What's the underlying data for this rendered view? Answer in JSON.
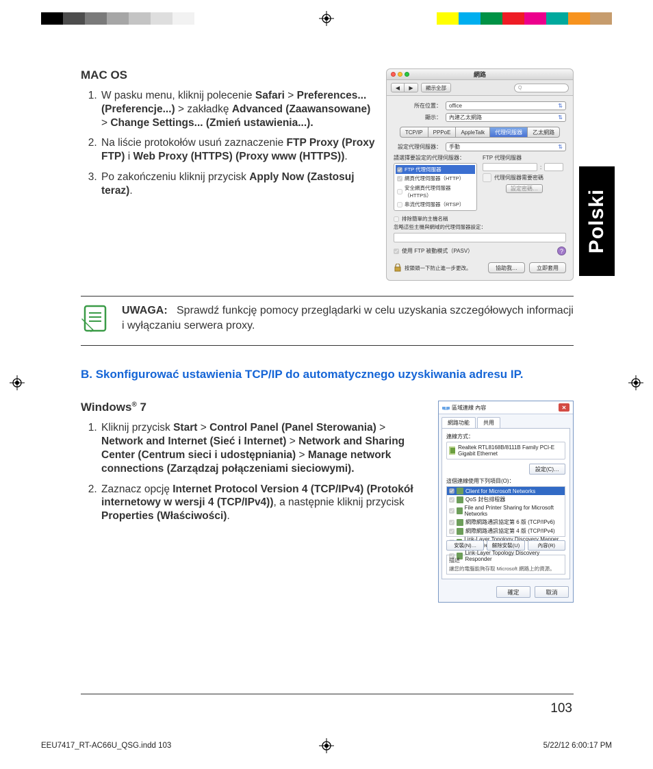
{
  "color_bar": {
    "left": [
      "#000000",
      "#4d4d4d",
      "#7a7a7a",
      "#a6a6a6",
      "#c4c4c4",
      "#dedede",
      "#f2f2f2"
    ],
    "right": [
      "#ffff00",
      "#00aeef",
      "#009245",
      "#ee1c25",
      "#ec008c",
      "#00a99d",
      "#f7931e",
      "#c69c6d"
    ]
  },
  "side_tab": "Polski",
  "macos": {
    "heading": "MAC OS",
    "steps": [
      "W pasku menu, kliknij polecenie <b>Safari</b> > <b>Preferences... (Preferencje...)</b> > zakładkę <b>Advanced (Zaawansowane)</b> > <b>Change  Settings... (Zmień ustawienia...).</b>",
      "Na liście protokołów usuń zaznaczenie <b>FTP Proxy (Proxy FTP)</b> i <b>Web Proxy (HTTPS) (Proxy www (HTTPS))</b>.",
      "Po zakończeniu kliknij przycisk  <b>Apply Now (Zastosuj teraz)</b>."
    ],
    "window": {
      "title": "網路",
      "show_all": "顯示全部",
      "search_hint": "Q",
      "location_lbl": "所在位置：",
      "location_val": "office",
      "show_lbl": "顯示：",
      "show_val": "內建乙太網路",
      "tabs": [
        "TCP/IP",
        "PPPoE",
        "AppleTalk",
        "代理伺服器",
        "乙太網路"
      ],
      "active_tab": 3,
      "cfg_lbl": "設定代理伺服器：",
      "cfg_val": "手動",
      "left_hdr": "請選擇要設定的代理伺服器：",
      "right_hdr": "FTP 代理伺服器",
      "proxy_items": [
        {
          "label": "FTP 代理伺服器",
          "checked": true,
          "sel": true
        },
        {
          "label": "網頁代理伺服器（HTTP）",
          "checked": true,
          "sel": false
        },
        {
          "label": "安全網頁代理伺服器（HTTPS）",
          "checked": false,
          "sel": false
        },
        {
          "label": "串流代理伺服器（RTSP）",
          "checked": false,
          "sel": false
        }
      ],
      "auth_chk": "代理伺服器需要密碼",
      "auth_btn": "設定密碼…",
      "exclude_chk": "排除簡單的主機名稱",
      "bypass_lbl": "忽略這些主機與網域的代理伺服器設定：",
      "pasv": "使用 FTP 被動模式（PASV）",
      "lock_txt": "按鎖頭一下防止進一步更改。",
      "assist_btn": "協助我…",
      "apply_btn": "立即套用"
    }
  },
  "note": {
    "label": "UWAGA:",
    "text": "Sprawdź funkcję pomocy przeglądarki w celu uzyskania szczegółowych informacji i wyłączaniu serwera proxy."
  },
  "blue_heading": "B.   Skonfigurować ustawienia TCP/IP do automatycznego uzyskiwania adresu IP.",
  "win7": {
    "heading": "Windows® 7",
    "steps": [
      "Kliknij przycisk <b>Start</b> > <b>Control Panel (Panel Sterowania)</b> > <b>Network and Internet (Sieć i Internet)</b> > <b>Network and Sharing Center (Centrum sieci i udostępniania)</b> > <b>Manage network connections (Zarządzaj połączeniami sieciowymi).</b>",
      "Zaznacz opcję <b>Internet Protocol Version 4 (TCP/IPv4) (Protokół internetowy w wersji 4 (TCP/IPv4))</b>, a następnie kliknij przycisk <b>Properties (Właściwości)</b>."
    ],
    "window": {
      "title": "區域連線 內容",
      "tabs": [
        "網路功能",
        "共用"
      ],
      "connect_lbl": "連線方式：",
      "adapter": "Realtek RTL8168B/8111B Family PCI-E Gigabit Ethernet",
      "set_btn": "設定(C)…",
      "uses_lbl": "這個連線使用下列項目(O)：",
      "items": [
        {
          "label": "Client for Microsoft Networks",
          "checked": true,
          "sel": true
        },
        {
          "label": "QoS 封包排程器",
          "checked": true,
          "sel": false
        },
        {
          "label": "File and Printer Sharing for Microsoft Networks",
          "checked": true,
          "sel": false
        },
        {
          "label": "網際網路通訊協定第 6 版 (TCP/IPv6)",
          "checked": true,
          "sel": false
        },
        {
          "label": "網際網路通訊協定第 4 版 (TCP/IPv4)",
          "checked": true,
          "sel": false
        },
        {
          "label": "Link-Layer Topology Discovery Mapper I/O Driver",
          "checked": true,
          "sel": false
        },
        {
          "label": "Link-Layer Topology Discovery Responder",
          "checked": true,
          "sel": false
        }
      ],
      "install_btn": "安裝(N)…",
      "uninstall_btn": "解除安裝(U)",
      "props_btn": "內容(R)",
      "desc_hdr": "描述",
      "desc_txt": "讓您的電腦能夠存取 Microsoft 網路上的資源。",
      "ok": "確定",
      "cancel": "取消"
    }
  },
  "page_number": "103",
  "print_footer": {
    "file": "EEU7417_RT-AC66U_QSG.indd   103",
    "datetime": "5/22/12   6:00:17 PM"
  }
}
